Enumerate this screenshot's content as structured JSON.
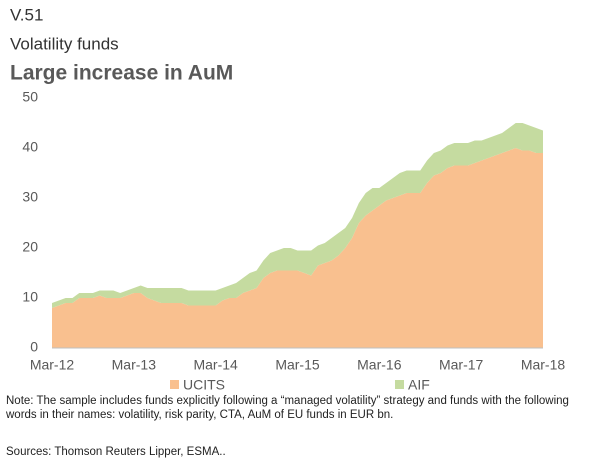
{
  "chart_data": {
    "type": "stacked_area",
    "label": "V.51",
    "subtitle": "Volatility funds",
    "title": "Large increase in AuM",
    "categories": [
      "Mar-12",
      null,
      null,
      null,
      null,
      null,
      null,
      null,
      null,
      null,
      null,
      null,
      "Mar-13",
      null,
      null,
      null,
      null,
      null,
      null,
      null,
      null,
      null,
      null,
      null,
      "Mar-14",
      null,
      null,
      null,
      null,
      null,
      null,
      null,
      null,
      null,
      null,
      null,
      "Mar-15",
      null,
      null,
      null,
      null,
      null,
      null,
      null,
      null,
      null,
      null,
      null,
      "Mar-16",
      null,
      null,
      null,
      null,
      null,
      null,
      null,
      null,
      null,
      null,
      null,
      "Mar-17",
      null,
      null,
      null,
      null,
      null,
      null,
      null,
      null,
      null,
      null,
      null,
      "Mar-18"
    ],
    "series": [
      {
        "name": "UCITS",
        "color": "#f9c08f",
        "values": [
          8,
          8.5,
          9,
          9,
          10,
          10,
          10,
          10.5,
          10,
          10,
          10,
          10.5,
          11,
          11,
          10,
          9.5,
          9,
          9,
          9,
          9,
          8.5,
          8.5,
          8.5,
          8.5,
          8.5,
          9.5,
          10,
          10,
          11,
          11.5,
          12,
          14,
          15,
          15.5,
          15.5,
          15.5,
          15.5,
          15,
          14.5,
          16.5,
          17,
          17.5,
          18.5,
          20,
          22,
          25,
          26.5,
          27.5,
          28.5,
          29.5,
          30,
          30.5,
          31,
          31,
          31,
          33,
          34.5,
          35,
          36,
          36.5,
          36.5,
          36.5,
          37,
          37.5,
          38,
          38.5,
          39,
          39.5,
          40,
          39.5,
          39.5,
          39,
          39
        ]
      },
      {
        "name": "AIF",
        "color": "#c5dba0",
        "values": [
          1,
          1,
          1,
          1,
          1,
          1,
          1,
          1,
          1.5,
          1.5,
          1,
          1,
          1,
          1.5,
          2,
          2.5,
          3,
          3,
          3,
          3,
          3,
          3,
          3,
          3,
          3,
          2.5,
          2.5,
          3,
          3,
          3.5,
          3.5,
          3.5,
          4,
          4,
          4.5,
          4.5,
          4,
          4.5,
          5,
          4,
          4,
          4.5,
          4.5,
          4,
          4,
          4,
          4.5,
          4.5,
          3.5,
          3.5,
          4,
          4.5,
          4.5,
          4.5,
          4.5,
          4.5,
          4.5,
          4.5,
          4.5,
          4.5,
          4.5,
          4.5,
          4.5,
          4,
          4,
          4,
          4,
          4.5,
          5,
          5.5,
          5,
          5,
          4.5
        ]
      }
    ],
    "ylim": [
      0,
      50
    ],
    "yticks": [
      0,
      10,
      20,
      30,
      40,
      50
    ],
    "grid": false,
    "legend": "bottom",
    "note": "Note: The sample includes funds explicitly following a “managed volatility” strategy and funds with the following words in their names: volatility, risk parity, CTA, AuM of EU funds in EUR bn.",
    "sources": "Sources: Thomson Reuters Lipper, ESMA.."
  }
}
